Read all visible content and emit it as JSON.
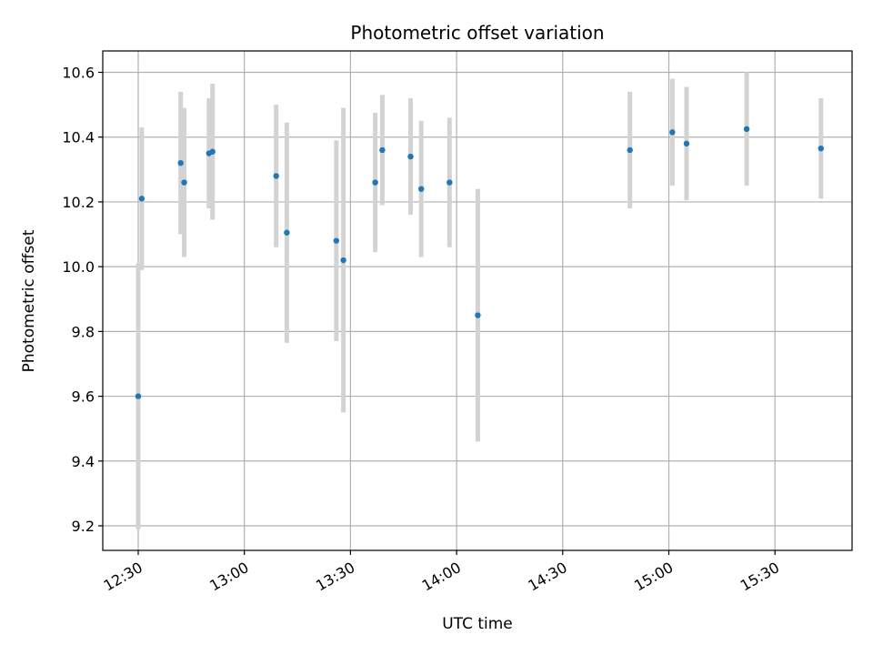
{
  "chart_data": {
    "type": "scatter",
    "title": "Photometric offset variation",
    "xlabel": "UTC time",
    "ylabel": "Photometric offset",
    "x_ticks": [
      "12:30",
      "13:00",
      "13:30",
      "14:00",
      "14:30",
      "15:00",
      "15:30"
    ],
    "y_ticks": [
      "9.2",
      "9.4",
      "9.6",
      "9.8",
      "10.0",
      "10.2",
      "10.4",
      "10.6"
    ],
    "ylim": [
      9.13,
      10.665
    ],
    "grid": true,
    "error_bar_color": "#d3d3d3",
    "marker_color": "#1f77b4",
    "points": [
      {
        "time": "12:30",
        "y": 9.6,
        "yerr": 0.41
      },
      {
        "time": "12:31",
        "y": 10.21,
        "yerr": 0.22
      },
      {
        "time": "12:42",
        "y": 10.32,
        "yerr": 0.22
      },
      {
        "time": "12:43",
        "y": 10.26,
        "yerr": 0.23
      },
      {
        "time": "12:50",
        "y": 10.35,
        "yerr": 0.17
      },
      {
        "time": "12:51",
        "y": 10.355,
        "yerr": 0.21
      },
      {
        "time": "13:09",
        "y": 10.28,
        "yerr": 0.22
      },
      {
        "time": "13:12",
        "y": 10.105,
        "yerr": 0.34
      },
      {
        "time": "13:26",
        "y": 10.08,
        "yerr": 0.31
      },
      {
        "time": "13:28",
        "y": 10.02,
        "yerr": 0.47
      },
      {
        "time": "13:37",
        "y": 10.26,
        "yerr": 0.215
      },
      {
        "time": "13:39",
        "y": 10.36,
        "yerr": 0.17
      },
      {
        "time": "13:47",
        "y": 10.34,
        "yerr": 0.18
      },
      {
        "time": "13:50",
        "y": 10.24,
        "yerr": 0.21
      },
      {
        "time": "13:58",
        "y": 10.26,
        "yerr": 0.2
      },
      {
        "time": "14:06",
        "y": 9.85,
        "yerr": 0.39
      },
      {
        "time": "14:49",
        "y": 10.36,
        "yerr": 0.18
      },
      {
        "time": "15:01",
        "y": 10.415,
        "yerr": 0.165
      },
      {
        "time": "15:05",
        "y": 10.38,
        "yerr": 0.175
      },
      {
        "time": "15:22",
        "y": 10.425,
        "yerr": 0.175
      },
      {
        "time": "15:43",
        "y": 10.365,
        "yerr": 0.155
      }
    ]
  }
}
